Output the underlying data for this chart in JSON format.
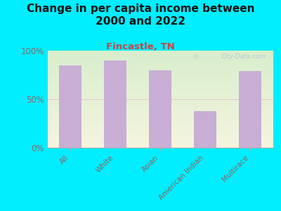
{
  "title": "Change in per capita income between\n2000 and 2022",
  "subtitle": "Fincastle, TN",
  "categories": [
    "All",
    "White",
    "Asian",
    "American Indian",
    "Multirace"
  ],
  "values": [
    85,
    90,
    80,
    38,
    79
  ],
  "bar_color": "#c8aed4",
  "title_fontsize": 11,
  "subtitle_fontsize": 9.5,
  "subtitle_color": "#cc4444",
  "title_color": "#111111",
  "background_outer": "#00eeff",
  "tick_label_color": "#886666",
  "axis_label_color": "#886666",
  "ylim": [
    0,
    100
  ],
  "yticks": [
    0,
    50,
    100
  ],
  "ytick_labels": [
    "0%",
    "50%",
    "100%"
  ],
  "watermark": "City-Data.com",
  "watermark_color": "#aabbcc",
  "grid50_color": "#ddcccc",
  "plot_bg_color": "#eef4e0"
}
